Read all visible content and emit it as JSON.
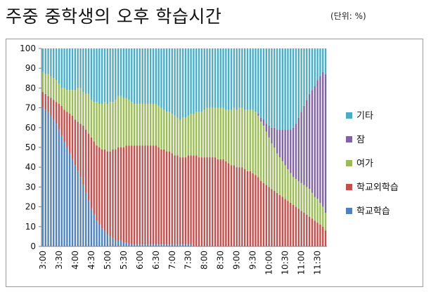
{
  "header": {
    "title": "주중 중학생의 오후 학습시간",
    "unit": "(단위: %)"
  },
  "chart_data": {
    "type": "bar",
    "stacked": true,
    "title": "주중 중학생의 오후 학습시간",
    "xlabel": "",
    "ylabel": "",
    "ylim": [
      0,
      100
    ],
    "yticks": [
      0,
      10,
      20,
      30,
      40,
      50,
      60,
      70,
      80,
      90,
      100
    ],
    "grid": false,
    "legend_position": "right",
    "categories": [
      "3:00",
      "3:05",
      "3:10",
      "3:15",
      "3:20",
      "3:25",
      "3:30",
      "3:35",
      "3:40",
      "3:45",
      "3:50",
      "3:55",
      "4:00",
      "4:05",
      "4:10",
      "4:15",
      "4:20",
      "4:25",
      "4:30",
      "4:35",
      "4:40",
      "4:45",
      "4:50",
      "4:55",
      "5:00",
      "5:05",
      "5:10",
      "5:15",
      "5:20",
      "5:25",
      "5:30",
      "5:35",
      "5:40",
      "5:45",
      "5:50",
      "5:55",
      "6:00",
      "6:05",
      "6:10",
      "6:15",
      "6:20",
      "6:25",
      "6:30",
      "6:35",
      "6:40",
      "6:45",
      "6:50",
      "6:55",
      "7:00",
      "7:05",
      "7:10",
      "7:15",
      "7:20",
      "7:25",
      "7:30",
      "7:35",
      "7:40",
      "7:45",
      "7:50",
      "7:55",
      "8:00",
      "8:05",
      "8:10",
      "8:15",
      "8:20",
      "8:25",
      "8:30",
      "8:35",
      "8:40",
      "8:45",
      "8:50",
      "8:55",
      "9:00",
      "9:05",
      "9:10",
      "9:15",
      "9:20",
      "9:25",
      "9:30",
      "9:35",
      "9:40",
      "9:45",
      "9:50",
      "9:55",
      "10:00",
      "10:05",
      "10:10",
      "10:15",
      "10:20",
      "10:25",
      "10:30",
      "10:35",
      "10:40",
      "10:45",
      "10:50",
      "10:55",
      "11:00",
      "11:05",
      "11:10",
      "11:15",
      "11:20",
      "11:25",
      "11:30",
      "11:35",
      "11:40",
      "11:45"
    ],
    "xtick_labels": [
      "3:00",
      "3:30",
      "4:00",
      "4:30",
      "5:00",
      "5:30",
      "6:00",
      "6:30",
      "7:00",
      "7:30",
      "8:00",
      "8:30",
      "9:00",
      "9:30",
      "10:00",
      "10:30",
      "11:00",
      "11:30"
    ],
    "series": [
      {
        "name": "학교학습",
        "color": "#4f81bd",
        "values": [
          70,
          69,
          68,
          66,
          64,
          62,
          59,
          56,
          53,
          50,
          47,
          44,
          41,
          38,
          35,
          31,
          27,
          23,
          19,
          16,
          13,
          11,
          9,
          8,
          6,
          5,
          4,
          3,
          3,
          3,
          2,
          2,
          1,
          1,
          1,
          1,
          1,
          1,
          1,
          1,
          1,
          1,
          1,
          1,
          1,
          1,
          1,
          1,
          1,
          1,
          1,
          1,
          1,
          1,
          1,
          1,
          0,
          0,
          0,
          0,
          0,
          0,
          0,
          0,
          0,
          0,
          0,
          0,
          0,
          0,
          0,
          0,
          0,
          0,
          0,
          0,
          0,
          0,
          0,
          0,
          0,
          0,
          0,
          0,
          0,
          0,
          0,
          0,
          0,
          0,
          0,
          0,
          0,
          0,
          0,
          0,
          0,
          0,
          0,
          0,
          0,
          0,
          0,
          0,
          0,
          0
        ]
      },
      {
        "name": "학교외학습",
        "color": "#c0504d",
        "values": [
          8,
          8,
          8,
          9,
          10,
          11,
          13,
          15,
          16,
          18,
          20,
          22,
          23,
          25,
          27,
          30,
          32,
          34,
          36,
          37,
          38,
          39,
          40,
          41,
          42,
          43,
          45,
          46,
          47,
          47,
          48,
          49,
          50,
          50,
          50,
          50,
          50,
          50,
          50,
          50,
          50,
          50,
          50,
          49,
          48,
          48,
          47,
          47,
          46,
          45,
          45,
          44,
          44,
          44,
          45,
          45,
          46,
          46,
          45,
          45,
          45,
          45,
          45,
          45,
          45,
          44,
          44,
          44,
          43,
          42,
          41,
          41,
          40,
          40,
          40,
          39,
          38,
          38,
          37,
          36,
          35,
          33,
          32,
          31,
          30,
          29,
          28,
          27,
          26,
          25,
          24,
          23,
          22,
          21,
          20,
          19,
          18,
          17,
          16,
          15,
          14,
          13,
          12,
          11,
          10,
          8
        ]
      },
      {
        "name": "여가",
        "color": "#9bbb59",
        "values": [
          10,
          10,
          11,
          11,
          11,
          11,
          10,
          9,
          11,
          11,
          12,
          13,
          15,
          17,
          18,
          17,
          18,
          20,
          19,
          20,
          22,
          22,
          23,
          24,
          24,
          25,
          24,
          25,
          26,
          26,
          25,
          24,
          23,
          22,
          21,
          21,
          21,
          21,
          21,
          21,
          21,
          21,
          21,
          21,
          21,
          20,
          20,
          20,
          20,
          20,
          19,
          19,
          20,
          20,
          20,
          21,
          21,
          22,
          23,
          23,
          24,
          25,
          25,
          25,
          25,
          26,
          26,
          26,
          26,
          27,
          28,
          29,
          29,
          30,
          30,
          30,
          31,
          31,
          32,
          32,
          31,
          30,
          29,
          27,
          25,
          23,
          22,
          20,
          19,
          18,
          17,
          16,
          15,
          14,
          14,
          14,
          14,
          14,
          14,
          14,
          13,
          12,
          12,
          11,
          10,
          9
        ]
      },
      {
        "name": "잠",
        "color": "#8064a2",
        "values": [
          0,
          0,
          0,
          0,
          0,
          0,
          0,
          0,
          0,
          0,
          0,
          0,
          0,
          0,
          0,
          0,
          0,
          0,
          0,
          0,
          0,
          0,
          0,
          0,
          0,
          0,
          0,
          0,
          0,
          0,
          0,
          0,
          0,
          0,
          0,
          0,
          0,
          0,
          0,
          0,
          0,
          0,
          0,
          0,
          0,
          0,
          0,
          0,
          0,
          0,
          0,
          0,
          0,
          0,
          0,
          0,
          0,
          0,
          0,
          0,
          0,
          0,
          0,
          0,
          0,
          0,
          0,
          0,
          0,
          0,
          0,
          0,
          0,
          0,
          0,
          0,
          0,
          0,
          0,
          0,
          1,
          2,
          3,
          4,
          6,
          8,
          10,
          12,
          14,
          16,
          18,
          20,
          22,
          25,
          28,
          32,
          36,
          40,
          44,
          48,
          52,
          56,
          60,
          64,
          68,
          70
        ]
      },
      {
        "name": "기타",
        "color": "#4bacc6",
        "values": [
          12,
          13,
          13,
          14,
          15,
          16,
          18,
          20,
          20,
          21,
          21,
          21,
          21,
          20,
          20,
          22,
          23,
          23,
          26,
          27,
          27,
          28,
          28,
          27,
          28,
          27,
          27,
          26,
          24,
          24,
          25,
          25,
          26,
          27,
          28,
          28,
          28,
          28,
          28,
          28,
          28,
          28,
          28,
          29,
          30,
          31,
          32,
          32,
          33,
          34,
          35,
          36,
          35,
          35,
          34,
          33,
          33,
          32,
          32,
          32,
          31,
          30,
          30,
          30,
          30,
          30,
          30,
          30,
          31,
          31,
          31,
          30,
          31,
          30,
          30,
          31,
          31,
          31,
          31,
          32,
          33,
          35,
          36,
          38,
          39,
          40,
          40,
          41,
          41,
          41,
          41,
          41,
          41,
          40,
          38,
          35,
          32,
          29,
          26,
          23,
          21,
          19,
          16,
          14,
          12,
          13
        ]
      }
    ],
    "legend_order": [
      "기타",
      "잠",
      "여가",
      "학교외학습",
      "학교학습"
    ]
  }
}
